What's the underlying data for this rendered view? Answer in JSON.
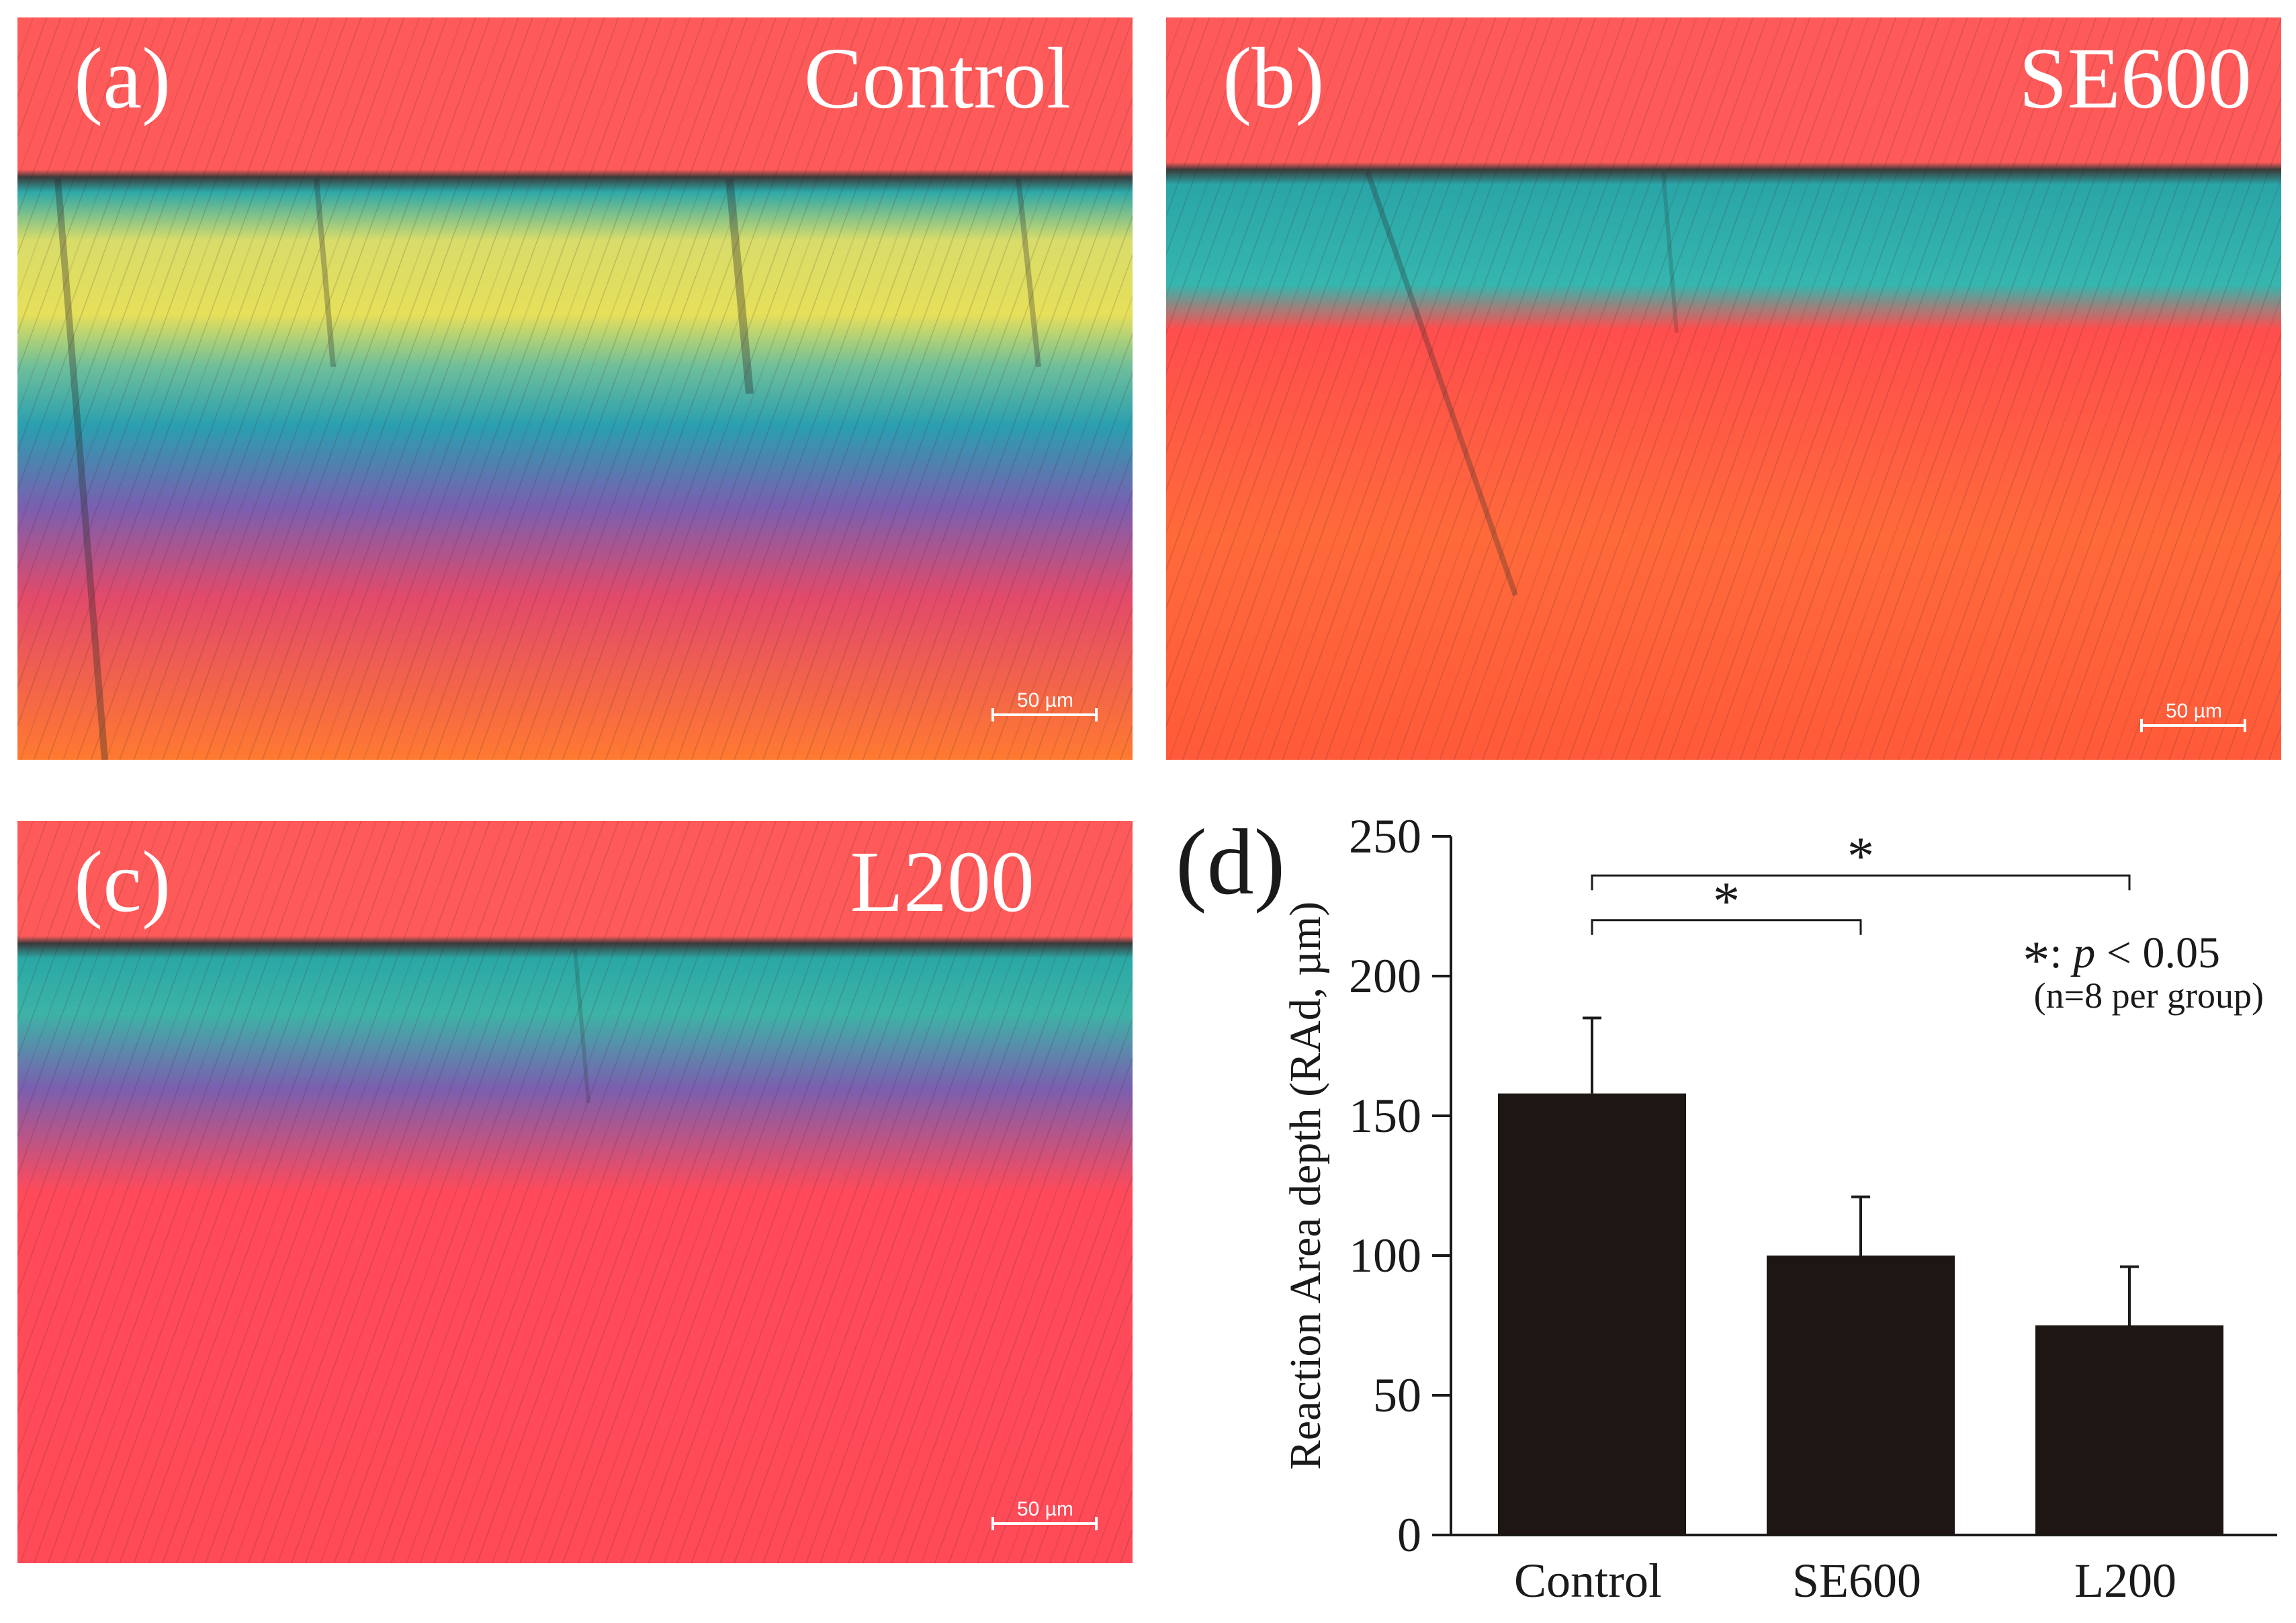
{
  "panels": [
    {
      "letter": "(a)",
      "name": "Control",
      "scale_bar": "50 µm"
    },
    {
      "letter": "(b)",
      "name": "SE600",
      "scale_bar": "50 µm"
    },
    {
      "letter": "(c)",
      "name": "L200",
      "scale_bar": "50 µm"
    }
  ],
  "colors": {
    "enamel_red": "#ff5757",
    "band_cyan": "#2fb6b0",
    "band_yellow": "#e8e25a",
    "lesion_orange": "#ff6a2a",
    "bar_fill": "#1e1613"
  },
  "chart_data": {
    "type": "bar",
    "panel_letter": "(d)",
    "categories": [
      "Control",
      "SE600",
      "L200"
    ],
    "values": [
      158,
      100,
      75
    ],
    "errors": [
      27,
      21,
      21
    ],
    "ylabel": "Reaction Area depth (RAd, µm)",
    "xlabel": "",
    "ylim": [
      0,
      250
    ],
    "yticks": [
      0,
      50,
      100,
      150,
      200,
      250
    ],
    "ytick_labels": [
      "0",
      "50",
      "100",
      "150",
      "200",
      "250"
    ],
    "significance": [
      {
        "from": "Control",
        "to": "SE600",
        "label": "*",
        "y": 220
      },
      {
        "from": "Control",
        "to": "L200",
        "label": "*",
        "y": 236
      }
    ],
    "legend_symbol": "*",
    "legend_text": ": p < 0.05",
    "legend_p": "p",
    "legend_rest": " < 0.05",
    "legend_note": "(n=8 per group)"
  }
}
